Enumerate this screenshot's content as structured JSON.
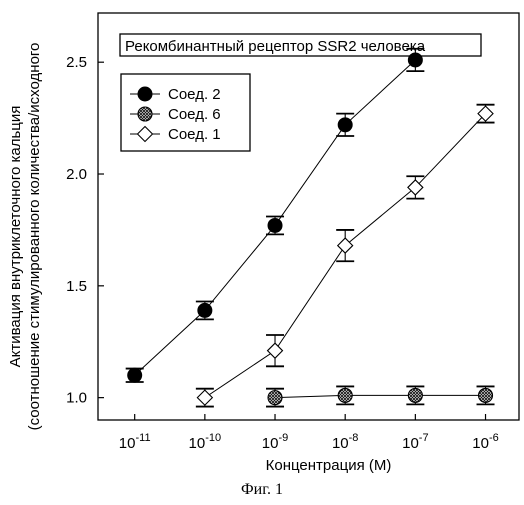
{
  "chart_data": {
    "type": "line",
    "title": "Рекомбинантный рецептор SSR2 человека",
    "xlabel": "Концентрация (М)",
    "ylabel_line1": "Активация внутриклеточного кальция",
    "ylabel_line2": "(соотношение стимулированного количества/исходного",
    "caption": "Фиг. 1",
    "x_scale": "log",
    "x_ticks": [
      {
        "value": 1e-11,
        "base": "10",
        "exp": "-11"
      },
      {
        "value": 1e-10,
        "base": "10",
        "exp": "-10"
      },
      {
        "value": 1e-09,
        "base": "10",
        "exp": "-9"
      },
      {
        "value": 1e-08,
        "base": "10",
        "exp": "-8"
      },
      {
        "value": 1e-07,
        "base": "10",
        "exp": "-7"
      },
      {
        "value": 1e-06,
        "base": "10",
        "exp": "-6"
      }
    ],
    "y_ticks": [
      "1.0",
      "1.5",
      "2.0",
      "2.5"
    ],
    "xlim": [
      3e-12,
      3e-06
    ],
    "ylim": [
      0.9,
      2.72
    ],
    "grid": false,
    "legend_position": "top-left",
    "series": [
      {
        "name": "Соед. 2",
        "marker": "filled-circle",
        "x": [
          1e-11,
          1e-10,
          1e-09,
          1e-08,
          1e-07
        ],
        "y": [
          1.1,
          1.39,
          1.77,
          2.22,
          2.51
        ],
        "err": [
          0.03,
          0.04,
          0.04,
          0.05,
          0.05
        ]
      },
      {
        "name": "Соед. 6",
        "marker": "hatched-circle",
        "x": [
          1e-09,
          1e-08,
          1e-07,
          1e-06
        ],
        "y": [
          1.0,
          1.01,
          1.01,
          1.01
        ],
        "err": [
          0.04,
          0.04,
          0.04,
          0.04
        ]
      },
      {
        "name": "Соед. 1",
        "marker": "open-diamond",
        "x": [
          1e-10,
          1e-09,
          1e-08,
          1e-07,
          1e-06
        ],
        "y": [
          1.0,
          1.21,
          1.68,
          1.94,
          2.27
        ],
        "err": [
          0.04,
          0.07,
          0.07,
          0.05,
          0.04
        ]
      }
    ]
  }
}
